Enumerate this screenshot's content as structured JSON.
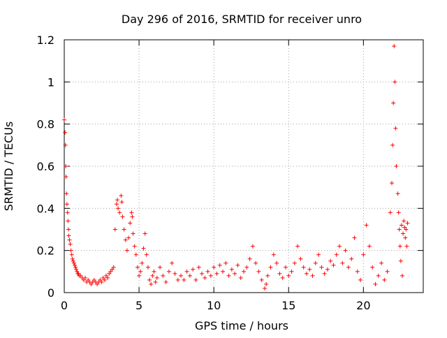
{
  "chart_data": {
    "type": "scatter",
    "title": "Day 296 of 2016, SRMTID for receiver unro",
    "xlabel": "GPS time / hours",
    "ylabel": "SRMTID / TECUs",
    "xlim": [
      0,
      24
    ],
    "ylim": [
      0,
      1.2
    ],
    "xticks": [
      0,
      5,
      10,
      15,
      20
    ],
    "xtick_labels": [
      "0",
      "5",
      "10",
      "15",
      "20"
    ],
    "yticks": [
      0,
      0.2,
      0.4,
      0.6,
      0.8,
      1,
      1.2
    ],
    "ytick_labels": [
      "0",
      "0.2",
      "0.4",
      "0.6",
      "0.8",
      "1",
      "1.2"
    ],
    "grid": true,
    "marker": "+",
    "series": [
      {
        "name": "unro",
        "color": "#ff0000",
        "points": [
          [
            0.0,
            0.82
          ],
          [
            0.05,
            0.76
          ],
          [
            0.08,
            0.7
          ],
          [
            0.1,
            0.6
          ],
          [
            0.12,
            0.55
          ],
          [
            0.15,
            0.47
          ],
          [
            0.18,
            0.42
          ],
          [
            0.22,
            0.38
          ],
          [
            0.25,
            0.34
          ],
          [
            0.28,
            0.3
          ],
          [
            0.3,
            0.27
          ],
          [
            0.35,
            0.25
          ],
          [
            0.4,
            0.23
          ],
          [
            0.45,
            0.2
          ],
          [
            0.5,
            0.18
          ],
          [
            0.55,
            0.16
          ],
          [
            0.6,
            0.15
          ],
          [
            0.65,
            0.14
          ],
          [
            0.7,
            0.13
          ],
          [
            0.75,
            0.12
          ],
          [
            0.8,
            0.11
          ],
          [
            0.85,
            0.1
          ],
          [
            0.9,
            0.09
          ],
          [
            0.95,
            0.09
          ],
          [
            1.0,
            0.08
          ],
          [
            1.1,
            0.08
          ],
          [
            1.2,
            0.07
          ],
          [
            1.3,
            0.06
          ],
          [
            1.4,
            0.07
          ],
          [
            1.5,
            0.05
          ],
          [
            1.6,
            0.06
          ],
          [
            1.7,
            0.05
          ],
          [
            1.8,
            0.04
          ],
          [
            1.9,
            0.05
          ],
          [
            2.0,
            0.06
          ],
          [
            2.1,
            0.05
          ],
          [
            2.2,
            0.04
          ],
          [
            2.3,
            0.05
          ],
          [
            2.4,
            0.06
          ],
          [
            2.5,
            0.05
          ],
          [
            2.6,
            0.07
          ],
          [
            2.7,
            0.06
          ],
          [
            2.8,
            0.08
          ],
          [
            2.9,
            0.07
          ],
          [
            3.0,
            0.09
          ],
          [
            3.1,
            0.1
          ],
          [
            3.2,
            0.11
          ],
          [
            3.3,
            0.12
          ],
          [
            3.4,
            0.3
          ],
          [
            3.5,
            0.42
          ],
          [
            3.55,
            0.44
          ],
          [
            3.6,
            0.4
          ],
          [
            3.7,
            0.38
          ],
          [
            3.8,
            0.46
          ],
          [
            3.85,
            0.43
          ],
          [
            3.9,
            0.36
          ],
          [
            4.0,
            0.3
          ],
          [
            4.1,
            0.25
          ],
          [
            4.2,
            0.2
          ],
          [
            4.3,
            0.26
          ],
          [
            4.4,
            0.33
          ],
          [
            4.5,
            0.38
          ],
          [
            4.55,
            0.36
          ],
          [
            4.6,
            0.28
          ],
          [
            4.7,
            0.22
          ],
          [
            4.8,
            0.18
          ],
          [
            4.9,
            0.12
          ],
          [
            5.0,
            0.08
          ],
          [
            5.1,
            0.1
          ],
          [
            5.2,
            0.14
          ],
          [
            5.3,
            0.21
          ],
          [
            5.4,
            0.28
          ],
          [
            5.5,
            0.18
          ],
          [
            5.6,
            0.12
          ],
          [
            5.7,
            0.06
          ],
          [
            5.8,
            0.04
          ],
          [
            5.9,
            0.08
          ],
          [
            6.0,
            0.1
          ],
          [
            6.1,
            0.05
          ],
          [
            6.2,
            0.07
          ],
          [
            6.4,
            0.12
          ],
          [
            6.6,
            0.08
          ],
          [
            6.8,
            0.05
          ],
          [
            7.0,
            0.1
          ],
          [
            7.2,
            0.14
          ],
          [
            7.4,
            0.09
          ],
          [
            7.6,
            0.06
          ],
          [
            7.8,
            0.08
          ],
          [
            8.0,
            0.06
          ],
          [
            8.2,
            0.1
          ],
          [
            8.4,
            0.08
          ],
          [
            8.6,
            0.11
          ],
          [
            8.8,
            0.06
          ],
          [
            9.0,
            0.12
          ],
          [
            9.2,
            0.09
          ],
          [
            9.4,
            0.07
          ],
          [
            9.6,
            0.1
          ],
          [
            9.8,
            0.08
          ],
          [
            10.0,
            0.12
          ],
          [
            10.2,
            0.09
          ],
          [
            10.4,
            0.13
          ],
          [
            10.6,
            0.1
          ],
          [
            10.8,
            0.14
          ],
          [
            11.0,
            0.08
          ],
          [
            11.2,
            0.11
          ],
          [
            11.4,
            0.09
          ],
          [
            11.6,
            0.13
          ],
          [
            11.8,
            0.07
          ],
          [
            12.0,
            0.1
          ],
          [
            12.2,
            0.12
          ],
          [
            12.4,
            0.16
          ],
          [
            12.6,
            0.22
          ],
          [
            12.8,
            0.14
          ],
          [
            13.0,
            0.1
          ],
          [
            13.2,
            0.06
          ],
          [
            13.4,
            0.02
          ],
          [
            13.5,
            0.04
          ],
          [
            13.6,
            0.08
          ],
          [
            13.8,
            0.12
          ],
          [
            14.0,
            0.18
          ],
          [
            14.2,
            0.14
          ],
          [
            14.4,
            0.09
          ],
          [
            14.6,
            0.07
          ],
          [
            14.8,
            0.12
          ],
          [
            15.0,
            0.08
          ],
          [
            15.2,
            0.1
          ],
          [
            15.4,
            0.14
          ],
          [
            15.6,
            0.22
          ],
          [
            15.8,
            0.16
          ],
          [
            16.0,
            0.12
          ],
          [
            16.2,
            0.09
          ],
          [
            16.4,
            0.11
          ],
          [
            16.6,
            0.08
          ],
          [
            16.8,
            0.14
          ],
          [
            17.0,
            0.18
          ],
          [
            17.2,
            0.12
          ],
          [
            17.4,
            0.09
          ],
          [
            17.6,
            0.11
          ],
          [
            17.8,
            0.15
          ],
          [
            18.0,
            0.13
          ],
          [
            18.2,
            0.18
          ],
          [
            18.4,
            0.22
          ],
          [
            18.6,
            0.14
          ],
          [
            18.8,
            0.2
          ],
          [
            19.0,
            0.12
          ],
          [
            19.2,
            0.16
          ],
          [
            19.4,
            0.26
          ],
          [
            19.6,
            0.1
          ],
          [
            19.8,
            0.06
          ],
          [
            20.0,
            0.18
          ],
          [
            20.2,
            0.32
          ],
          [
            20.4,
            0.22
          ],
          [
            20.6,
            0.12
          ],
          [
            20.8,
            0.04
          ],
          [
            21.0,
            0.08
          ],
          [
            21.2,
            0.14
          ],
          [
            21.4,
            0.06
          ],
          [
            21.6,
            0.1
          ],
          [
            21.8,
            0.38
          ],
          [
            21.9,
            0.52
          ],
          [
            21.95,
            0.7
          ],
          [
            22.0,
            0.9
          ],
          [
            22.05,
            1.17
          ],
          [
            22.1,
            1.0
          ],
          [
            22.15,
            0.78
          ],
          [
            22.2,
            0.6
          ],
          [
            22.3,
            0.47
          ],
          [
            22.35,
            0.38
          ],
          [
            22.4,
            0.3
          ],
          [
            22.45,
            0.22
          ],
          [
            22.5,
            0.15
          ],
          [
            22.55,
            0.32
          ],
          [
            22.6,
            0.08
          ],
          [
            22.65,
            0.28
          ],
          [
            22.7,
            0.34
          ],
          [
            22.75,
            0.31
          ],
          [
            22.8,
            0.26
          ],
          [
            22.85,
            0.3
          ],
          [
            22.9,
            0.22
          ],
          [
            22.95,
            0.33
          ]
        ]
      }
    ]
  }
}
